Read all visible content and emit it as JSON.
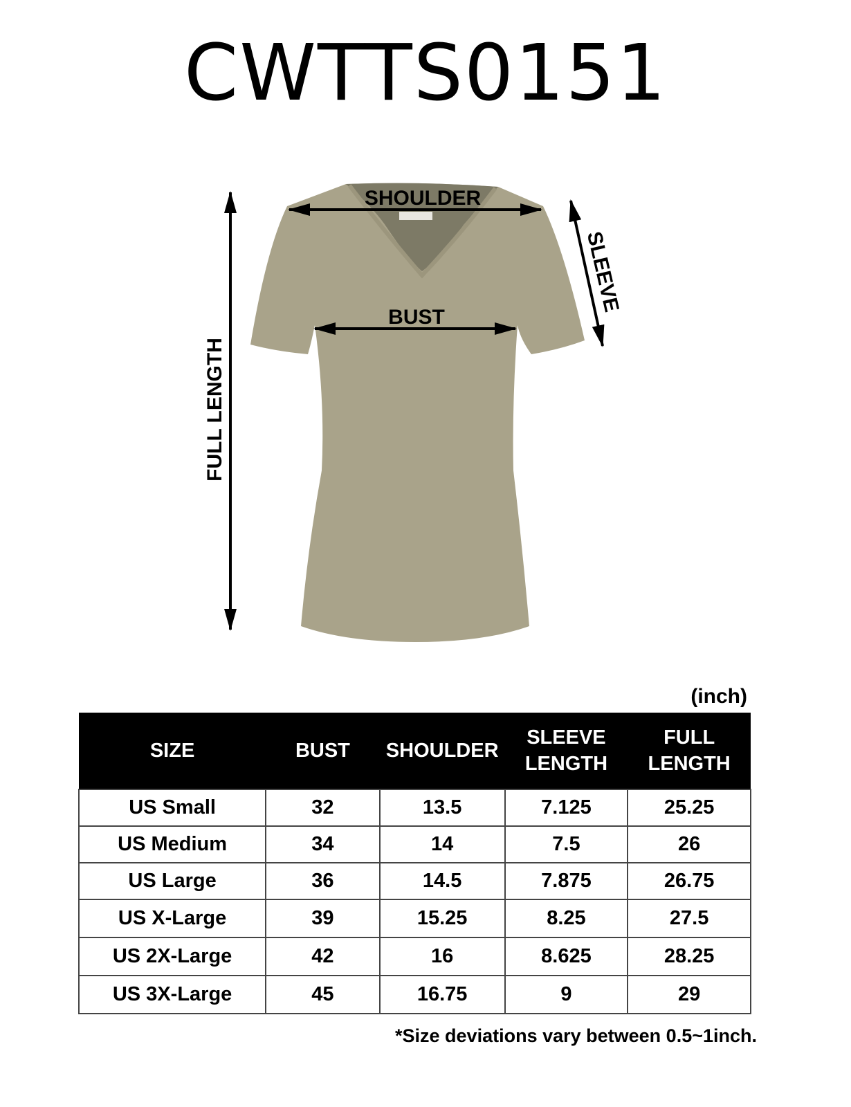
{
  "title": "CWTTS0151",
  "diagram": {
    "garment_color": "#a9a38a",
    "labels": {
      "shoulder": "SHOULDER",
      "bust": "BUST",
      "sleeve": "SLEEVE",
      "full_length": "FULL LENGTH"
    }
  },
  "unit": "(inch)",
  "table": {
    "headers": [
      [
        "SIZE"
      ],
      [
        "BUST"
      ],
      [
        "SHOULDER"
      ],
      [
        "SLEEVE",
        "LENGTH"
      ],
      [
        "FULL",
        "LENGTH"
      ]
    ],
    "rows": [
      [
        "US Small",
        "32",
        "13.5",
        "7.125",
        "25.25"
      ],
      [
        "US Medium",
        "34",
        "14",
        "7.5",
        "26"
      ],
      [
        "US Large",
        "36",
        "14.5",
        "7.875",
        "26.75"
      ],
      [
        "US X-Large",
        "39",
        "15.25",
        "8.25",
        "27.5"
      ],
      [
        "US 2X-Large",
        "42",
        "16",
        "8.625",
        "28.25"
      ],
      [
        "US 3X-Large",
        "45",
        "16.75",
        "9",
        "29"
      ]
    ]
  },
  "note": "*Size deviations vary between 0.5~1inch."
}
